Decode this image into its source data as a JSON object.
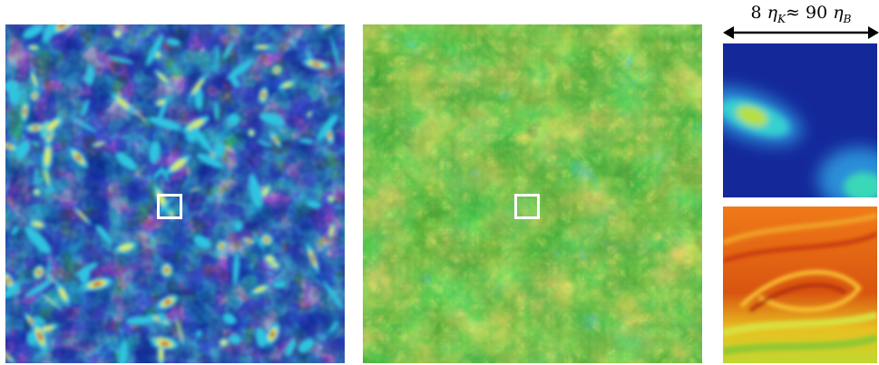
{
  "figure": {
    "scale_label": "8 ηK ≈ 90 ηB",
    "scale_parts": {
      "eta": "η",
      "k": "K",
      "approx": "≈",
      "b": "B",
      "n1": "8",
      "n2": "90"
    },
    "panels": [
      {
        "name": "vorticity-field",
        "colormap": [
          "#0a1f8a",
          "#1d4fd6",
          "#2ec4e0",
          "#7fe7c6",
          "#e3f03a",
          "#f0a020",
          "#c41d10"
        ]
      },
      {
        "name": "scalar-field",
        "colormap": [
          "#1e4fd0",
          "#22b9cc",
          "#2f9b2a",
          "#9ccc22",
          "#f0e030",
          "#f08020",
          "#b01010"
        ]
      }
    ],
    "zoom_panels": [
      "zoom-vorticity",
      "zoom-scalar"
    ]
  }
}
